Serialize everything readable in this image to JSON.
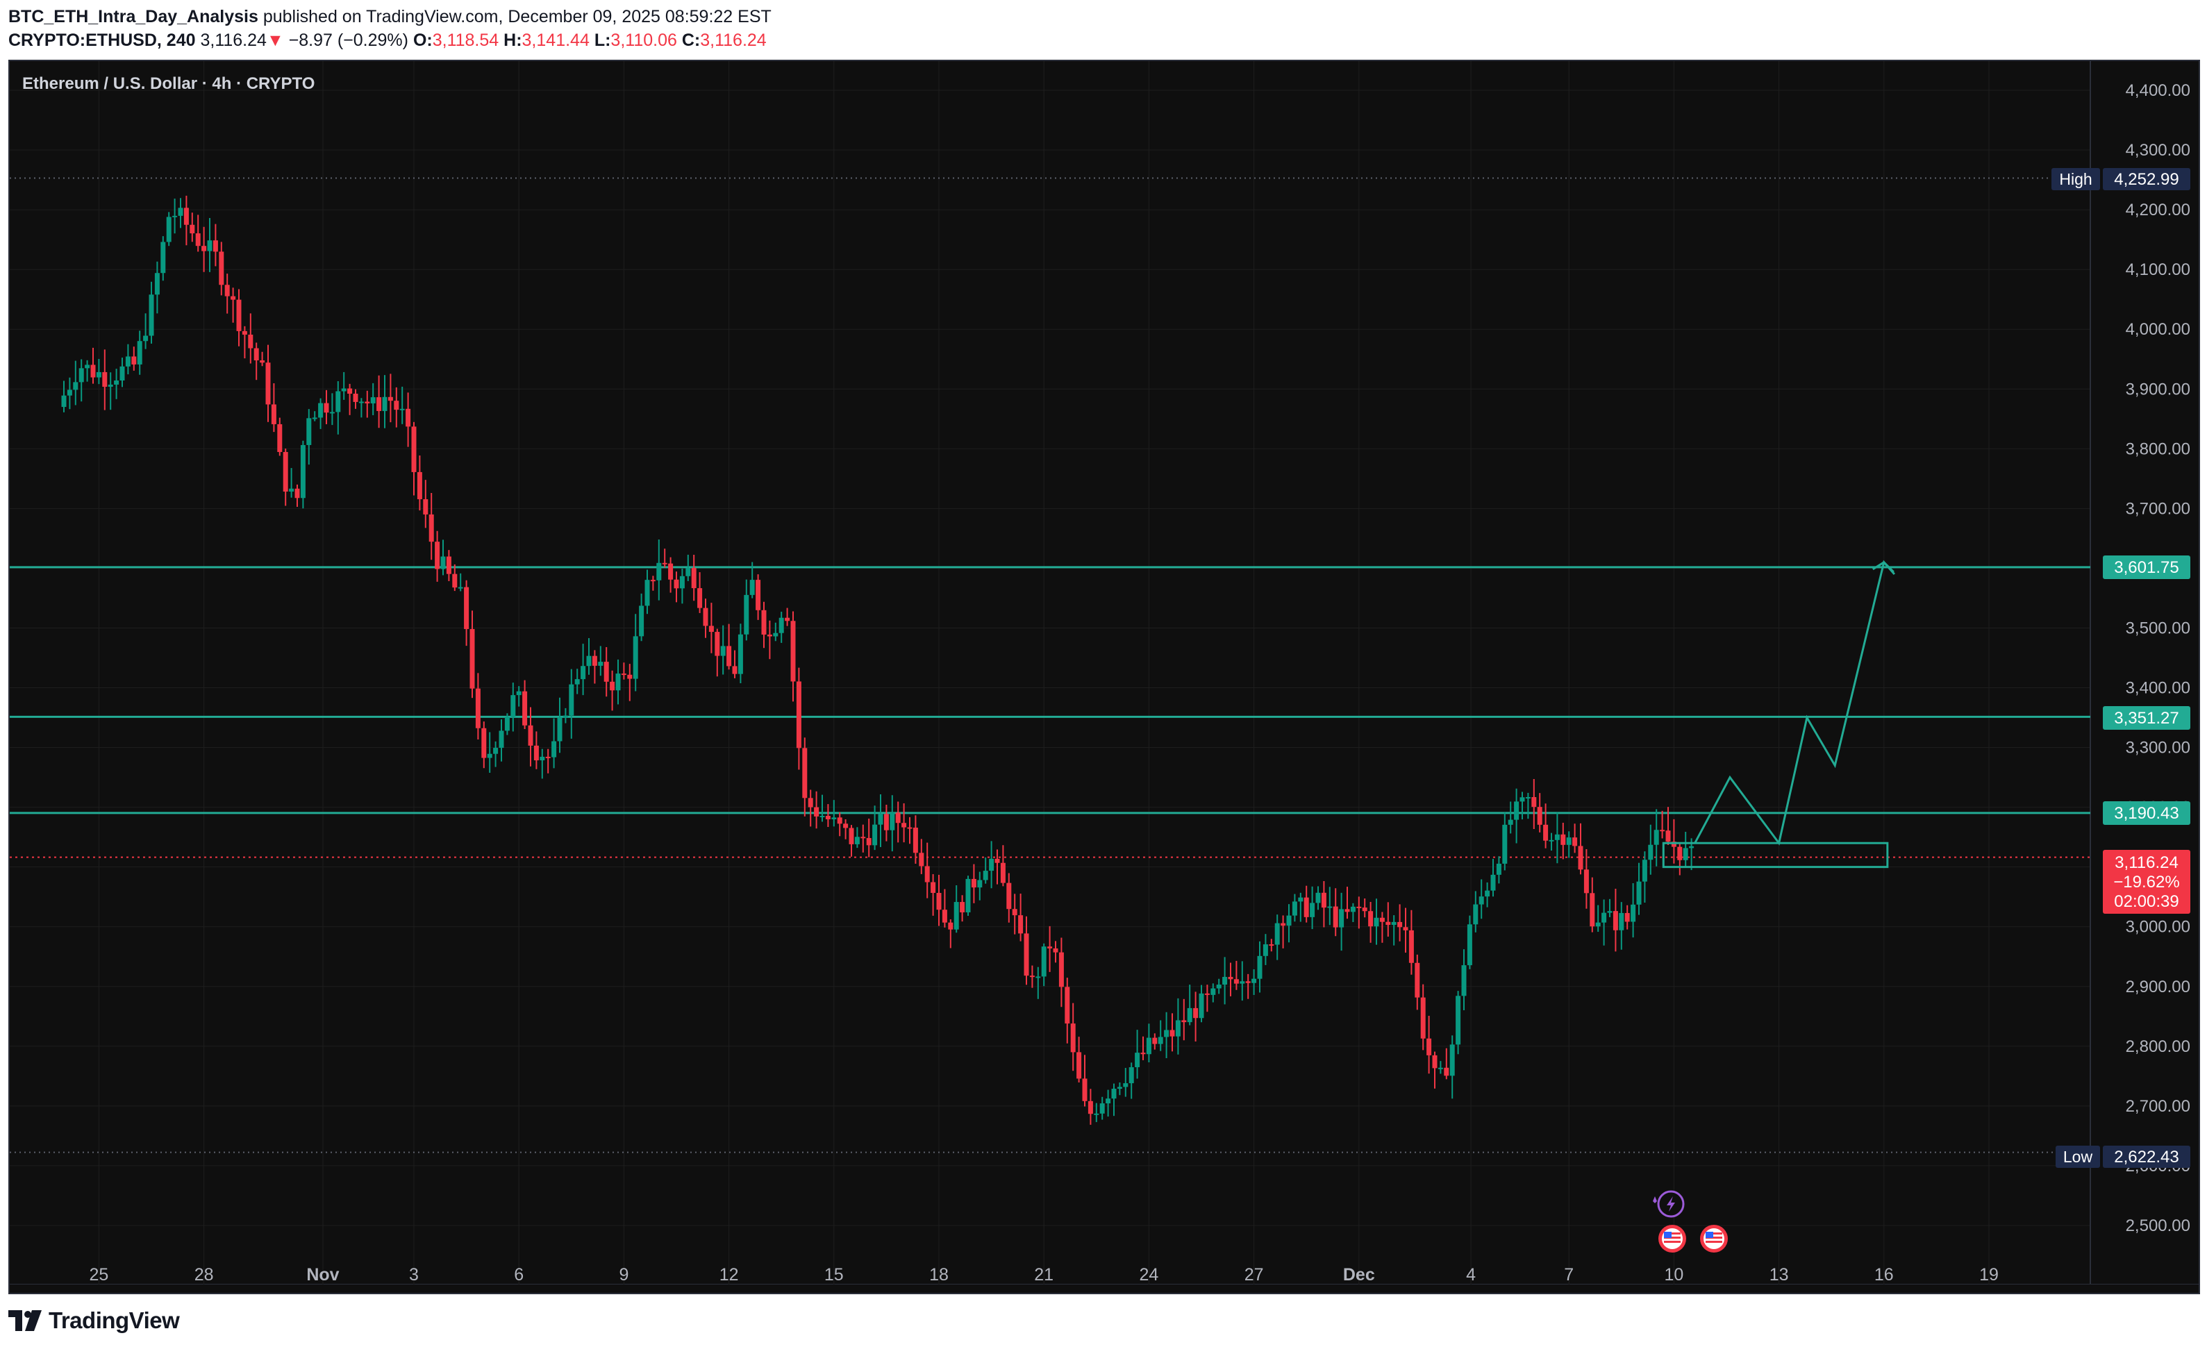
{
  "header": {
    "author": "BTC_ETH_Intra_Day_Analysis",
    "published": " published on TradingView.com, December 09, 2025 08:59:22 EST",
    "symbol": "CRYPTO:ETHUSD, 240",
    "last": "3,116.24",
    "arrow": "▼",
    "change": "−8.97 (−0.29%)",
    "o_label": "O:",
    "o_value": "3,118.54",
    "h_label": "H:",
    "h_value": "3,141.44",
    "l_label": "L:",
    "l_value": "3,110.06",
    "c_label": "C:",
    "c_value": "3,116.24"
  },
  "chart": {
    "legend_title": "Ethereum / U.S. Dollar · 4h · CRYPTO",
    "high_label": "High",
    "high_value": "4,252.99",
    "low_label": "Low",
    "low_value": "2,622.43",
    "current": {
      "price": "3,116.24",
      "change_pct": "−19.62%",
      "countdown": "02:00:39"
    },
    "levels": [
      "3,601.75",
      "3,351.27",
      "3,190.43"
    ],
    "colors": {
      "up": "#089981",
      "down": "#f23645",
      "level": "#22ab94",
      "bg": "#0f0f0f",
      "grid": "#1e1e1e",
      "text": "#b2b5be"
    },
    "price_ticks": [
      "4,400.00",
      "4,300.00",
      "4,200.00",
      "4,100.00",
      "4,000.00",
      "3,900.00",
      "3,800.00",
      "3,700.00",
      "3,600.00",
      "3,500.00",
      "3,400.00",
      "3,300.00",
      "3,200.00",
      "3,100.00",
      "3,000.00",
      "2,900.00",
      "2,800.00",
      "2,700.00",
      "2,600.00",
      "2,500.00"
    ],
    "time_ticks": [
      "25",
      "28",
      "Nov",
      "3",
      "6",
      "9",
      "12",
      "15",
      "18",
      "21",
      "24",
      "27",
      "Dec",
      "4",
      "7",
      "10",
      "13",
      "16",
      "19"
    ],
    "event_icons": [
      "flash-event-icon",
      "us-flag-icon",
      "us-flag-icon"
    ]
  },
  "chart_data": {
    "type": "candlestick",
    "title": "Ethereum / U.S. Dollar · 4h · CRYPTO",
    "price_range": [
      2450,
      4450
    ],
    "date_range": [
      "Oct 24",
      "Dec 21"
    ],
    "x_unit": "days since Oct 24 (4h bars)",
    "key_levels": [
      3601.75,
      3351.27,
      3190.43
    ],
    "period_high": 4252.99,
    "period_low": 2622.43,
    "last_close": 3116.24,
    "waypoints": [
      [
        0.0,
        3870
      ],
      [
        0.6,
        3940
      ],
      [
        1.4,
        3920
      ],
      [
        2.2,
        3940
      ],
      [
        2.7,
        4050
      ],
      [
        3.2,
        4200
      ],
      [
        3.6,
        4180
      ],
      [
        4.0,
        4150
      ],
      [
        4.5,
        4120
      ],
      [
        5.0,
        4040
      ],
      [
        5.5,
        3970
      ],
      [
        5.9,
        3920
      ],
      [
        6.4,
        3760
      ],
      [
        6.8,
        3700
      ],
      [
        7.1,
        3860
      ],
      [
        7.8,
        3880
      ],
      [
        8.4,
        3900
      ],
      [
        9.0,
        3870
      ],
      [
        9.4,
        3890
      ],
      [
        9.9,
        3850
      ],
      [
        10.3,
        3720
      ],
      [
        10.8,
        3620
      ],
      [
        11.6,
        3540
      ],
      [
        12.1,
        3260
      ],
      [
        12.6,
        3330
      ],
      [
        13.1,
        3390
      ],
      [
        13.6,
        3300
      ],
      [
        14.1,
        3280
      ],
      [
        14.5,
        3370
      ],
      [
        15.0,
        3450
      ],
      [
        15.8,
        3410
      ],
      [
        16.3,
        3420
      ],
      [
        16.8,
        3560
      ],
      [
        17.2,
        3620
      ],
      [
        17.6,
        3570
      ],
      [
        18.1,
        3600
      ],
      [
        18.7,
        3480
      ],
      [
        19.3,
        3420
      ],
      [
        19.8,
        3580
      ],
      [
        20.3,
        3480
      ],
      [
        20.8,
        3550
      ],
      [
        21.3,
        3210
      ],
      [
        22.0,
        3180
      ],
      [
        22.8,
        3140
      ],
      [
        23.5,
        3170
      ],
      [
        24.2,
        3180
      ],
      [
        24.8,
        3100
      ],
      [
        25.4,
        3000
      ],
      [
        26.0,
        3060
      ],
      [
        26.6,
        3120
      ],
      [
        27.2,
        3040
      ],
      [
        27.8,
        2900
      ],
      [
        28.4,
        2980
      ],
      [
        29.0,
        2780
      ],
      [
        29.4,
        2680
      ],
      [
        29.9,
        2720
      ],
      [
        30.6,
        2760
      ],
      [
        31.2,
        2800
      ],
      [
        31.8,
        2820
      ],
      [
        32.4,
        2860
      ],
      [
        33.0,
        2880
      ],
      [
        33.6,
        2920
      ],
      [
        34.3,
        2930
      ],
      [
        34.9,
        3020
      ],
      [
        35.5,
        3030
      ],
      [
        36.0,
        3040
      ],
      [
        36.6,
        3010
      ],
      [
        37.2,
        3030
      ],
      [
        37.8,
        3000
      ],
      [
        38.5,
        3010
      ],
      [
        38.9,
        2850
      ],
      [
        39.4,
        2730
      ],
      [
        39.8,
        2790
      ],
      [
        40.3,
        3000
      ],
      [
        40.9,
        3080
      ],
      [
        41.5,
        3180
      ],
      [
        42.0,
        3210
      ],
      [
        42.6,
        3150
      ],
      [
        43.2,
        3160
      ],
      [
        43.8,
        3020
      ],
      [
        44.4,
        3010
      ],
      [
        44.9,
        3010
      ],
      [
        45.3,
        3130
      ],
      [
        45.8,
        3150
      ],
      [
        46.3,
        3130
      ],
      [
        46.6,
        3116.24
      ]
    ],
    "projection": [
      [
        46.6,
        3140
      ],
      [
        47.6,
        3250
      ],
      [
        49.0,
        3140
      ],
      [
        49.8,
        3350
      ],
      [
        50.6,
        3270
      ],
      [
        52.0,
        3610
      ],
      [
        52.3,
        3590
      ]
    ]
  }
}
